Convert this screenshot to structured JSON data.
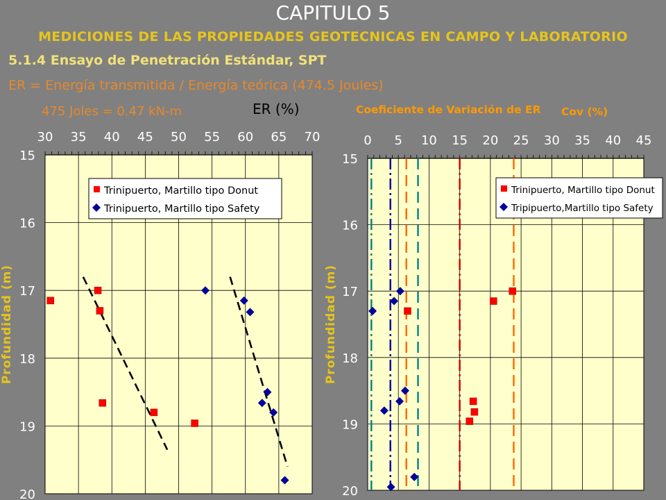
{
  "header": {
    "title": "CAPITULO 5",
    "subtitle": "MEDICIONES DE LAS PROPIEDADES GEOTECNICAS EN CAMPO Y LABORATORIO",
    "section": "5.1.4  Ensayo de Penetración Estándar, SPT",
    "formula": "ER = Energía transmitida / Energía teórica (474.5 Joules)",
    "joules_note": "475 Joles = 0.47 kN-m"
  },
  "colors": {
    "plot_bg": "#ffffcc",
    "donut": "#ff0000",
    "safety": "#000099",
    "axis_text": "#ffffff",
    "ylabel": "#e6c51c",
    "cov_title": "#ff9900",
    "trend": "#000000",
    "vline_teal": "#008080",
    "vline_navy": "#000099",
    "vline_orange": "#ff6600",
    "vline_red": "#cc0000"
  },
  "chart_data": [
    {
      "type": "scatter",
      "title": "ER (%)",
      "xlabel": "",
      "ylabel": "Profundidad (m)",
      "xlim": [
        30,
        70
      ],
      "ylim": [
        15,
        20
      ],
      "y_reversed": true,
      "xticks": [
        "30",
        "35",
        "40",
        "45",
        "50",
        "55",
        "60",
        "65",
        "70"
      ],
      "yticks": [
        "15",
        "16",
        "17",
        "18",
        "19",
        "20"
      ],
      "grid": true,
      "legend_position": "top-right",
      "series": [
        {
          "name": "Trinipuerto, Martillo tipo  Donut",
          "marker": "square",
          "points": [
            [
              30.8,
              17.15
            ],
            [
              37.9,
              17.0
            ],
            [
              38.2,
              17.3
            ],
            [
              38.6,
              18.66
            ],
            [
              46.3,
              18.8
            ],
            [
              52.4,
              18.96
            ]
          ]
        },
        {
          "name": "Trinipuerto, Martillo tipo Safety",
          "marker": "diamond",
          "points": [
            [
              54.0,
              17.0
            ],
            [
              59.8,
              17.15
            ],
            [
              60.7,
              17.32
            ],
            [
              62.5,
              18.66
            ],
            [
              63.3,
              18.5
            ],
            [
              64.2,
              18.8
            ],
            [
              65.9,
              19.8
            ]
          ]
        }
      ],
      "trendlines": [
        {
          "from": [
            35.7,
            16.8
          ],
          "to": [
            48.3,
            19.35
          ]
        },
        {
          "from": [
            57.7,
            16.8
          ],
          "to": [
            66.3,
            19.6
          ]
        }
      ]
    },
    {
      "type": "scatter",
      "title": "Coeficiente de Variación de ER",
      "title_secondary": "Cov (%)",
      "xlabel": "",
      "ylabel": "Profundidad (m)",
      "xlim": [
        0,
        45
      ],
      "ylim": [
        15,
        20
      ],
      "y_reversed": true,
      "xticks": [
        "0",
        "5",
        "10",
        "15",
        "20",
        "25",
        "30",
        "35",
        "40",
        "45"
      ],
      "yticks": [
        "15",
        "16",
        "17",
        "18",
        "19",
        "20"
      ],
      "grid": true,
      "legend_position": "top-right",
      "series": [
        {
          "name": "Trinipuerto, Martillo tipo Donut",
          "marker": "square",
          "points": [
            [
              23.6,
              17.0
            ],
            [
              20.5,
              17.15
            ],
            [
              6.5,
              17.3
            ],
            [
              17.2,
              18.66
            ],
            [
              17.4,
              18.82
            ],
            [
              16.6,
              18.96
            ]
          ]
        },
        {
          "name": "Tripipuerto,Martillo tipo Safety",
          "marker": "diamond",
          "points": [
            [
              5.3,
              17.0
            ],
            [
              4.3,
              17.15
            ],
            [
              0.8,
              17.3
            ],
            [
              6.1,
              18.5
            ],
            [
              5.2,
              18.66
            ],
            [
              2.7,
              18.8
            ],
            [
              7.6,
              19.8
            ],
            [
              3.8,
              19.95
            ]
          ]
        }
      ],
      "reference_lines": [
        {
          "x": 0.6,
          "style": "dash-dot",
          "color": "teal"
        },
        {
          "x": 3.7,
          "style": "dash-dot",
          "color": "navy"
        },
        {
          "x": 6.3,
          "style": "dash",
          "color": "orange"
        },
        {
          "x": 8.2,
          "style": "dash",
          "color": "teal"
        },
        {
          "x": 15.0,
          "style": "dash-dot",
          "color": "red"
        },
        {
          "x": 23.8,
          "style": "dash",
          "color": "orange"
        }
      ]
    }
  ]
}
